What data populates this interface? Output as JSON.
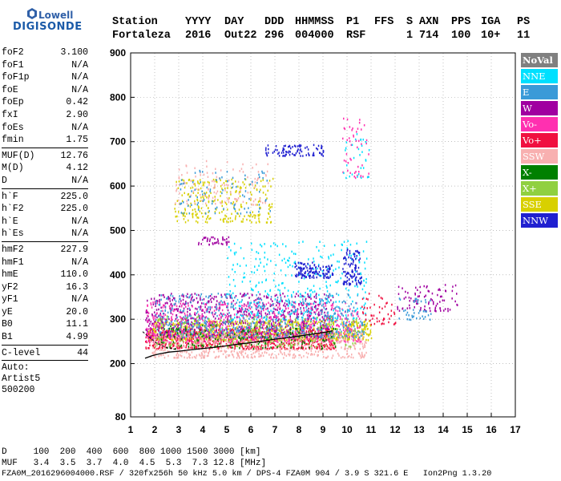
{
  "logo": {
    "line1": "Lowell",
    "line2": "DIGISONDE"
  },
  "header": {
    "row1": [
      "Station",
      "YYYY",
      "DAY",
      "DDD",
      "HHMMSS",
      "P1",
      "FFS",
      "S",
      "AXN",
      "PPS",
      "IGA",
      "PS"
    ],
    "row2": [
      "Fortaleza",
      "2016",
      "Out22",
      "296",
      "004000",
      "RSF",
      "1",
      "714",
      "100",
      "10+",
      "11"
    ]
  },
  "params": [
    {
      "name": "foF2",
      "value": "3.100"
    },
    {
      "name": "foF1",
      "value": "N/A"
    },
    {
      "name": "foF1p",
      "value": "N/A"
    },
    {
      "name": "foE",
      "value": "N/A"
    },
    {
      "name": "foEp",
      "value": "0.42"
    },
    {
      "name": "fxI",
      "value": "2.90"
    },
    {
      "name": "foEs",
      "value": "N/A"
    },
    {
      "name": "fmin",
      "value": "1.75"
    },
    {
      "sep": true
    },
    {
      "name": "MUF(D)",
      "value": "12.76"
    },
    {
      "name": "M(D)",
      "value": "4.12"
    },
    {
      "name": "D",
      "value": "N/A"
    },
    {
      "sep": true
    },
    {
      "name": "h`F",
      "value": "225.0"
    },
    {
      "name": "h`F2",
      "value": "225.0"
    },
    {
      "name": "h`E",
      "value": "N/A"
    },
    {
      "name": "h`Es",
      "value": "N/A"
    },
    {
      "sep": true
    },
    {
      "name": "hmF2",
      "value": "227.9"
    },
    {
      "name": "hmF1",
      "value": "N/A"
    },
    {
      "name": "hmE",
      "value": "110.0"
    },
    {
      "name": "yF2",
      "value": "16.3"
    },
    {
      "name": "yF1",
      "value": "N/A"
    },
    {
      "name": "yE",
      "value": "20.0"
    },
    {
      "name": "B0",
      "value": "11.1"
    },
    {
      "name": "B1",
      "value": "4.99"
    },
    {
      "sep": true
    },
    {
      "name": "C-level",
      "value": "44"
    },
    {
      "sep": true
    }
  ],
  "auto": [
    "Auto:",
    "Artist5",
    "500200"
  ],
  "legend": [
    {
      "label": "NoVal",
      "color": "#808080"
    },
    {
      "label": "NNE",
      "color": "#00e0ff"
    },
    {
      "label": "E",
      "color": "#3a9ad8"
    },
    {
      "label": "W",
      "color": "#a000a0"
    },
    {
      "label": "Vo-",
      "color": "#ff30b0"
    },
    {
      "label": "Vo+",
      "color": "#f01040"
    },
    {
      "label": "SSW",
      "color": "#f8b0b0"
    },
    {
      "label": "X-",
      "color": "#008000"
    },
    {
      "label": "X+",
      "color": "#90d040"
    },
    {
      "label": "SSE",
      "color": "#d8d000"
    },
    {
      "label": "NNW",
      "color": "#2020d0"
    }
  ],
  "footer": {
    "d_row": "D     100  200  400  600  800 1000 1500 3000 [km]",
    "muf_row": "MUF   3.4  3.5  3.7  4.0  4.5  5.3  7.3 12.8 [MHz]",
    "file_row": "FZA0M_2016296004000.RSF / 320fx256h 50 kHz 5.0 km / DPS-4 FZA0M 904 / 3.9 S 321.6 E   Ion2Png 1.3.20"
  },
  "chart_data": {
    "type": "scatter",
    "title": "",
    "xlabel": "",
    "ylabel": "",
    "xlim": [
      1,
      17
    ],
    "ylim": [
      80,
      900
    ],
    "xticks": [
      1,
      2,
      3,
      4,
      5,
      6,
      7,
      8,
      9,
      10,
      11,
      12,
      13,
      14,
      15,
      16,
      17
    ],
    "yticks": [
      80,
      200,
      300,
      400,
      500,
      600,
      700,
      800,
      900
    ],
    "grid": true,
    "legend_position": "right",
    "trace": {
      "name": "",
      "x": [
        1.6,
        1.9,
        2.2,
        2.6,
        3.0,
        3.5,
        4.0,
        4.5,
        5.0,
        5.5,
        6.0,
        6.5,
        7.0,
        7.5,
        8.0,
        8.5,
        9.0,
        9.4
      ],
      "y": [
        212,
        218,
        222,
        226,
        228,
        231,
        234,
        237,
        240,
        244,
        247,
        251,
        255,
        258,
        262,
        266,
        270,
        274
      ]
    },
    "dashed_trace": {
      "x": [
        1.5,
        1.8,
        2.1,
        2.5,
        2.9
      ],
      "y": [
        272,
        258,
        245,
        236,
        232
      ]
    },
    "echo_clusters": [
      {
        "color": "#d8d000",
        "xr": [
          1.7,
          11.0
        ],
        "yr": [
          255,
          300
        ],
        "n": 900
      },
      {
        "color": "#f01040",
        "xr": [
          1.6,
          9.5
        ],
        "yr": [
          235,
          280
        ],
        "n": 700
      },
      {
        "color": "#a000a0",
        "xr": [
          1.6,
          9.4
        ],
        "yr": [
          260,
          360
        ],
        "n": 800
      },
      {
        "color": "#ff30b0",
        "xr": [
          1.6,
          10.6
        ],
        "yr": [
          250,
          340
        ],
        "n": 650
      },
      {
        "color": "#3a9ad8",
        "xr": [
          2.0,
          10.8
        ],
        "yr": [
          260,
          360
        ],
        "n": 600
      },
      {
        "color": "#00e0ff",
        "xr": [
          5.0,
          10.8
        ],
        "yr": [
          300,
          480
        ],
        "n": 320
      },
      {
        "color": "#f8b0b0",
        "xr": [
          1.8,
          10.8
        ],
        "yr": [
          215,
          270
        ],
        "n": 550
      },
      {
        "color": "#90d040",
        "xr": [
          2.0,
          10.5
        ],
        "yr": [
          240,
          310
        ],
        "n": 250
      },
      {
        "color": "#008000",
        "xr": [
          2.2,
          9.5
        ],
        "yr": [
          235,
          290
        ],
        "n": 140
      },
      {
        "color": "#2020d0",
        "xr": [
          7.8,
          9.4
        ],
        "yr": [
          395,
          430
        ],
        "n": 120
      },
      {
        "color": "#2020d0",
        "xr": [
          9.8,
          10.6
        ],
        "yr": [
          380,
          460
        ],
        "n": 100
      },
      {
        "color": "#2020d0",
        "xr": [
          6.6,
          9.0
        ],
        "yr": [
          670,
          695
        ],
        "n": 90
      },
      {
        "color": "#d8d000",
        "xr": [
          2.8,
          6.9
        ],
        "yr": [
          520,
          620
        ],
        "n": 260
      },
      {
        "color": "#f8b0b0",
        "xr": [
          2.8,
          6.8
        ],
        "yr": [
          560,
          660
        ],
        "n": 120
      },
      {
        "color": "#3a9ad8",
        "xr": [
          3.0,
          6.8
        ],
        "yr": [
          540,
          640
        ],
        "n": 90
      },
      {
        "color": "#a000a0",
        "xr": [
          3.8,
          5.2
        ],
        "yr": [
          470,
          490
        ],
        "n": 40
      },
      {
        "color": "#ff30b0",
        "xr": [
          9.8,
          10.9
        ],
        "yr": [
          620,
          760
        ],
        "n": 50
      },
      {
        "color": "#00e0ff",
        "xr": [
          9.8,
          10.9
        ],
        "yr": [
          620,
          720
        ],
        "n": 30
      },
      {
        "color": "#a000a0",
        "xr": [
          12.0,
          14.6
        ],
        "yr": [
          320,
          380
        ],
        "n": 90
      },
      {
        "color": "#3a9ad8",
        "xr": [
          12.0,
          13.6
        ],
        "yr": [
          300,
          350
        ],
        "n": 40
      },
      {
        "color": "#f01040",
        "xr": [
          10.6,
          12.0
        ],
        "yr": [
          290,
          360
        ],
        "n": 50
      }
    ]
  }
}
